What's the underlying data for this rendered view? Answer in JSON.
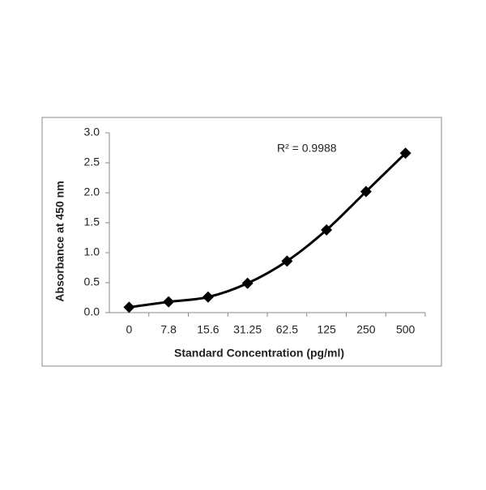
{
  "chart_data": {
    "type": "line",
    "x_label": "Standard Concentration (pg/ml)",
    "y_label": "Absorbance at 450 nm",
    "annotation": "R² = 0.9988",
    "categories": [
      "0",
      "7.8",
      "15.6",
      "31.25",
      "62.5",
      "125",
      "250",
      "500"
    ],
    "values": [
      0.09,
      0.18,
      0.26,
      0.49,
      0.86,
      1.38,
      2.02,
      2.66
    ],
    "color": "#000000",
    "ylim": [
      0,
      3
    ],
    "yticks": [
      {
        "value": 0,
        "label": "0.0"
      },
      {
        "value": 0.5,
        "label": "0.5"
      },
      {
        "value": 1,
        "label": "1.0"
      },
      {
        "value": 1.5,
        "label": "1.5"
      },
      {
        "value": 2,
        "label": "2.0"
      },
      {
        "value": 2.5,
        "label": "2.5"
      },
      {
        "value": 3,
        "label": "3.0"
      }
    ]
  }
}
